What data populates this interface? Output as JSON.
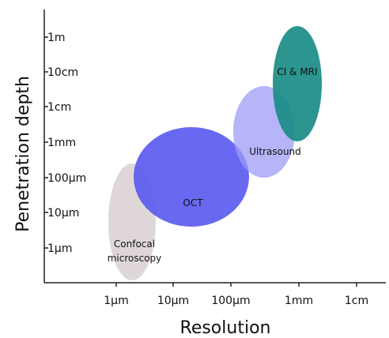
{
  "chart_data": {
    "type": "bubble-regions",
    "xlabel": "Resolution",
    "ylabel": "Penetration depth",
    "x_ticks": [
      "1µm",
      "10µm",
      "100µm",
      "1mm",
      "1cm"
    ],
    "y_ticks": [
      "1m",
      "10cm",
      "1cm",
      "1mm",
      "100µm",
      "10µm",
      "1µm"
    ],
    "regions": [
      {
        "name": "Confocal microscopy",
        "label_lines": [
          "Confocal",
          "microscopy"
        ],
        "color": "#d9d0d0",
        "x_range": [
          "1µm",
          "10µm"
        ],
        "y_range": [
          "<1µm",
          "100µm"
        ]
      },
      {
        "name": "OCT",
        "label_lines": [
          "OCT"
        ],
        "color": "#5b5bf0",
        "x_range": [
          "10µm",
          "100µm"
        ],
        "y_range": [
          "10µm",
          "1mm"
        ]
      },
      {
        "name": "Ultrasound",
        "label_lines": [
          "Ultrasound"
        ],
        "color": "#9c9cf5",
        "x_range": [
          "100µm",
          "1mm"
        ],
        "y_range": [
          "100µm",
          "1cm"
        ]
      },
      {
        "name": "CI & MRI",
        "label_lines": [
          "CI & MRI"
        ],
        "color": "#1a8c86",
        "x_range": [
          "1mm",
          "1cm"
        ],
        "y_range": [
          "1mm",
          "1m"
        ]
      }
    ]
  }
}
